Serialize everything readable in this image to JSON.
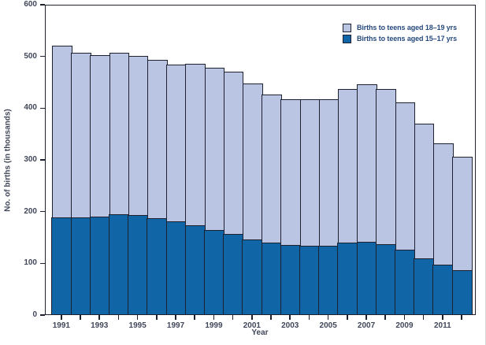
{
  "chart_data": {
    "type": "bar",
    "stacked": true,
    "title": "",
    "xlabel": "Year",
    "ylabel": "No. of births (in thousands)",
    "ylim": [
      0,
      600
    ],
    "ytick_interval": 100,
    "ytick_labels": [
      "0",
      "100",
      "200",
      "300",
      "400",
      "500",
      "600"
    ],
    "grid": false,
    "legend_position": "top-right",
    "categories": [
      1991,
      1992,
      1993,
      1994,
      1995,
      1996,
      1997,
      1998,
      1999,
      2000,
      2001,
      2002,
      2003,
      2004,
      2005,
      2006,
      2007,
      2008,
      2009,
      2010,
      2011,
      2012
    ],
    "xtick_labels_shown": [
      "1991",
      "1993",
      "1995",
      "1997",
      "1999",
      "2001",
      "2003",
      "2005",
      "2007",
      "2009",
      "2011"
    ],
    "series": [
      {
        "name": "Births to teens aged 18–19 yrs",
        "stack_position": "top",
        "color": "#b9c5e2",
        "values": [
          332,
          317,
          311,
          311,
          307,
          306,
          303,
          312,
          312,
          312,
          301,
          286,
          280,
          281,
          282,
          296,
          304,
          299,
          284,
          259,
          233,
          219
        ]
      },
      {
        "name": "Births to teens aged 15–17 yrs",
        "stack_position": "bottom",
        "color": "#1065a7",
        "values": [
          188,
          188,
          190,
          195,
          193,
          186,
          180,
          173,
          164,
          157,
          145,
          139,
          135,
          134,
          133,
          139,
          141,
          136,
          126,
          109,
          97,
          86
        ]
      }
    ],
    "totals_15_19": [
      520,
      505,
      501,
      506,
      500,
      492,
      483,
      485,
      476,
      469,
      446,
      425,
      415,
      415,
      415,
      435,
      445,
      435,
      410,
      368,
      330,
      305
    ]
  },
  "colors": {
    "bar_light": "#b9c5e2",
    "bar_dark": "#1065a7",
    "outline": "#1d2130",
    "tick_text": "#41475a",
    "legend_text": "#264a7d",
    "background": "#ffffff"
  }
}
